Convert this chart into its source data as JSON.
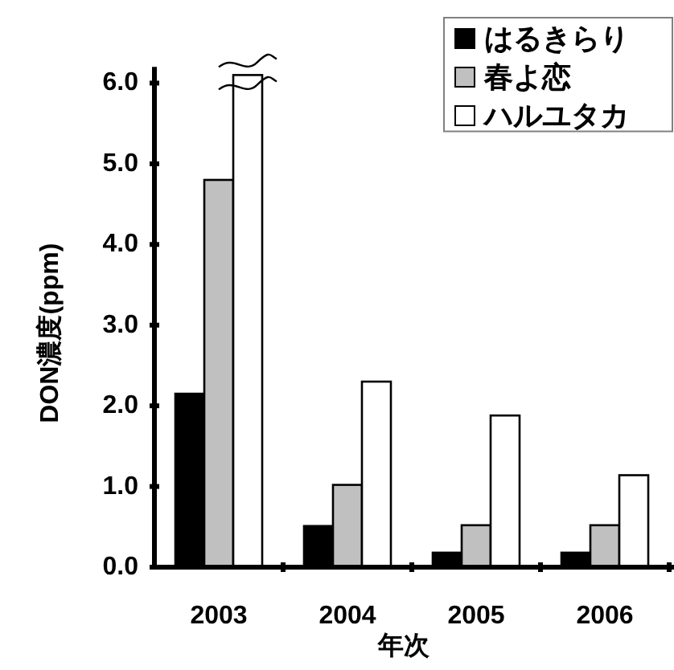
{
  "chart_data": {
    "type": "bar",
    "ylabel": "DON濃度(ppm)",
    "xlabel": "年次",
    "categories": [
      "2003",
      "2004",
      "2005",
      "2006"
    ],
    "series": [
      {
        "name": "はるきらり",
        "color": "#000000",
        "values": [
          2.15,
          0.51,
          0.18,
          0.18
        ]
      },
      {
        "name": "春よ恋",
        "color": "#c0c0c0",
        "values": [
          4.8,
          1.02,
          0.52,
          0.52
        ]
      },
      {
        "name": "ハルユタカ",
        "color": "#ffffff",
        "values": [
          6.1,
          2.3,
          1.88,
          1.14
        ]
      }
    ],
    "ylim": [
      0,
      6.2
    ],
    "yticks": [
      {
        "value": 0,
        "label": "0.0"
      },
      {
        "value": 1,
        "label": "1.0"
      },
      {
        "value": 2,
        "label": "2.0"
      },
      {
        "value": 3,
        "label": "3.0"
      },
      {
        "value": 4,
        "label": "4.0"
      },
      {
        "value": 5,
        "label": "5.0"
      },
      {
        "value": 6,
        "label": "6.0"
      }
    ],
    "grid": false,
    "legend": "top right"
  }
}
